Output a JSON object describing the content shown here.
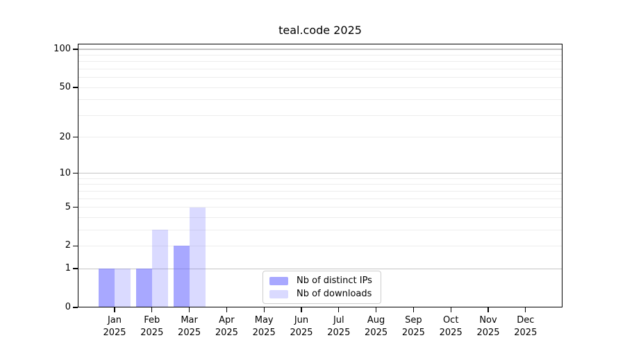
{
  "title": "teal.code 2025",
  "chart_data": {
    "type": "bar",
    "categories": [
      "Jan",
      "Feb",
      "Mar",
      "Apr",
      "May",
      "Jun",
      "Jul",
      "Aug",
      "Sep",
      "Oct",
      "Nov",
      "Dec"
    ],
    "year": "2025",
    "series": [
      {
        "name": "Nb of distinct IPs",
        "fill": "rgba(102,102,255,0.57)",
        "values": [
          1,
          1,
          2,
          0,
          0,
          0,
          0,
          0,
          0,
          0,
          0,
          0
        ]
      },
      {
        "name": "Nb of downloads",
        "fill": "rgba(102,102,255,0.24)",
        "values": [
          1,
          3,
          5,
          0,
          0,
          0,
          0,
          0,
          0,
          0,
          0,
          0
        ]
      }
    ],
    "y_scale": "log10(value+1)",
    "y_ticks": [
      0,
      1,
      2,
      5,
      10,
      20,
      50,
      100
    ],
    "ylim": [
      0,
      100
    ],
    "xlabel": "",
    "ylabel": "",
    "grid_major": [
      1,
      10,
      100
    ],
    "grid_minor": [
      2,
      3,
      4,
      5,
      6,
      7,
      8,
      9,
      20,
      30,
      40,
      50,
      60,
      70,
      80,
      90
    ],
    "legend_position": "bottom-center"
  },
  "colors": {
    "background": "#ffffff",
    "axis": "#000000",
    "grid_major": "#c4c4c4",
    "grid_minor": "#ededed",
    "legend_border": "#cccccc",
    "bar_dark": "#a8a8f8",
    "bar_light": "#dcdcf8"
  }
}
